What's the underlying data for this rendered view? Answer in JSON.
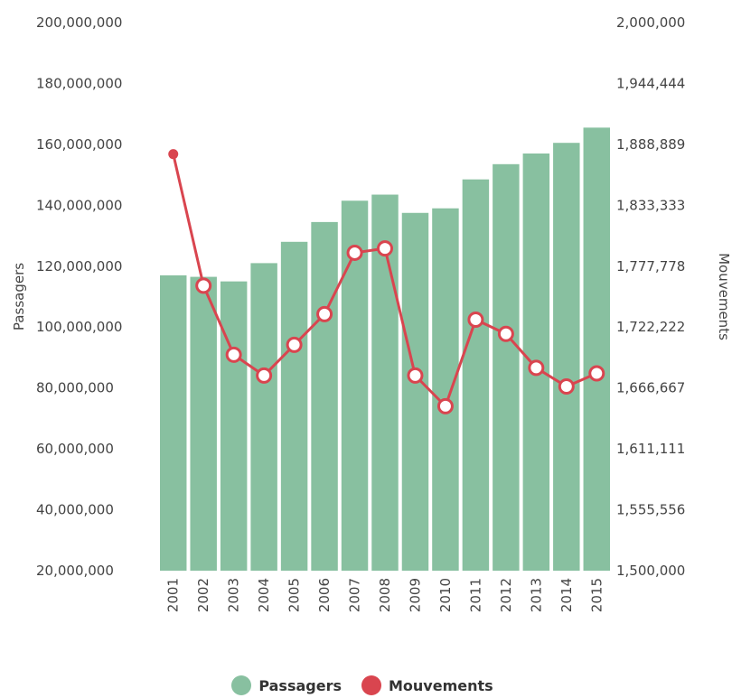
{
  "chart_data": {
    "type": "bar",
    "categories": [
      "2001",
      "2002",
      "2003",
      "2004",
      "2005",
      "2006",
      "2007",
      "2008",
      "2009",
      "2010",
      "2011",
      "2012",
      "2013",
      "2014",
      "2015"
    ],
    "series": [
      {
        "name": "Passagers",
        "type": "bar",
        "axis": "left",
        "color": "#88c0a0",
        "values": [
          117000000,
          116500000,
          115000000,
          121000000,
          128000000,
          134500000,
          141500000,
          143500000,
          137500000,
          139000000,
          148500000,
          153500000,
          157000000,
          160500000,
          165500000
        ]
      },
      {
        "name": "Mouvements",
        "type": "line",
        "axis": "right",
        "color": "#d9454f",
        "values": [
          1880000,
          1760000,
          1697000,
          1678000,
          1706000,
          1734000,
          1790000,
          1794000,
          1678000,
          1650000,
          1729000,
          1716000,
          1685000,
          1668000,
          1680000
        ]
      }
    ],
    "left_axis": {
      "label": "Passagers",
      "ylim": [
        20000000,
        200000000
      ],
      "ticks": [
        "200,000,000",
        "180,000,000",
        "160,000,000",
        "140,000,000",
        "120,000,000",
        "100,000,000",
        "80,000,000",
        "60,000,000",
        "40,000,000",
        "20,000,000"
      ]
    },
    "right_axis": {
      "label": "Mouvements",
      "ylim": [
        1500000,
        2000000
      ],
      "ticks": [
        "2,000,000",
        "1,944,444",
        "1,888,889",
        "1,833,333",
        "1,777,778",
        "1,722,222",
        "1,666,667",
        "1,611,111",
        "1,555,556",
        "1,500,000"
      ]
    },
    "grid": false,
    "legend_position": "bottom"
  }
}
